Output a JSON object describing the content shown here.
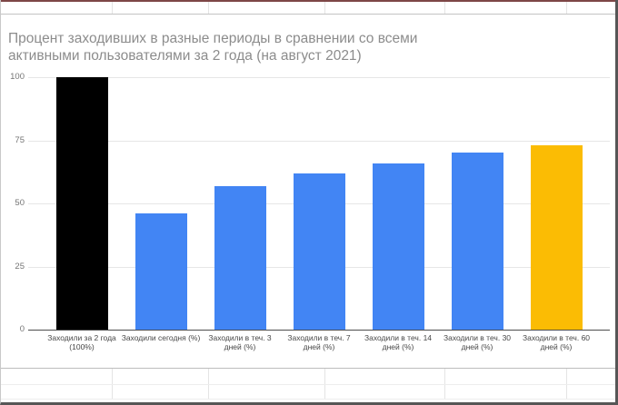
{
  "chart": {
    "title_lines": [
      "Процент заходивших в разные периоды в сравнении со всеми",
      "активными пользователями за 2 года (на август 2021)"
    ]
  },
  "chart_data": {
    "type": "bar",
    "title": "Процент заходивших в разные периоды в сравнении со всеми активными пользователями за 2 года (на август 2021)",
    "categories": [
      "Заходили за 2 года (100%)",
      "Заходили сегодня (%)",
      "Заходили в теч. 3 дней (%)",
      "Заходили в теч. 7 дней (%)",
      "Заходили в теч. 14 дней (%)",
      "Заходили в теч. 30 дней (%)",
      "Заходили в теч. 60 дней (%)"
    ],
    "values": [
      100,
      46,
      57,
      62,
      66,
      70,
      73
    ],
    "bar_colors": [
      "#000000",
      "#4285f4",
      "#4285f4",
      "#4285f4",
      "#4285f4",
      "#4285f4",
      "#fbbc04"
    ],
    "y_ticks": [
      100,
      75,
      50,
      25,
      0
    ],
    "ylim": [
      0,
      100
    ],
    "xlabel": "",
    "ylabel": "",
    "grid": true,
    "legend": "none"
  }
}
